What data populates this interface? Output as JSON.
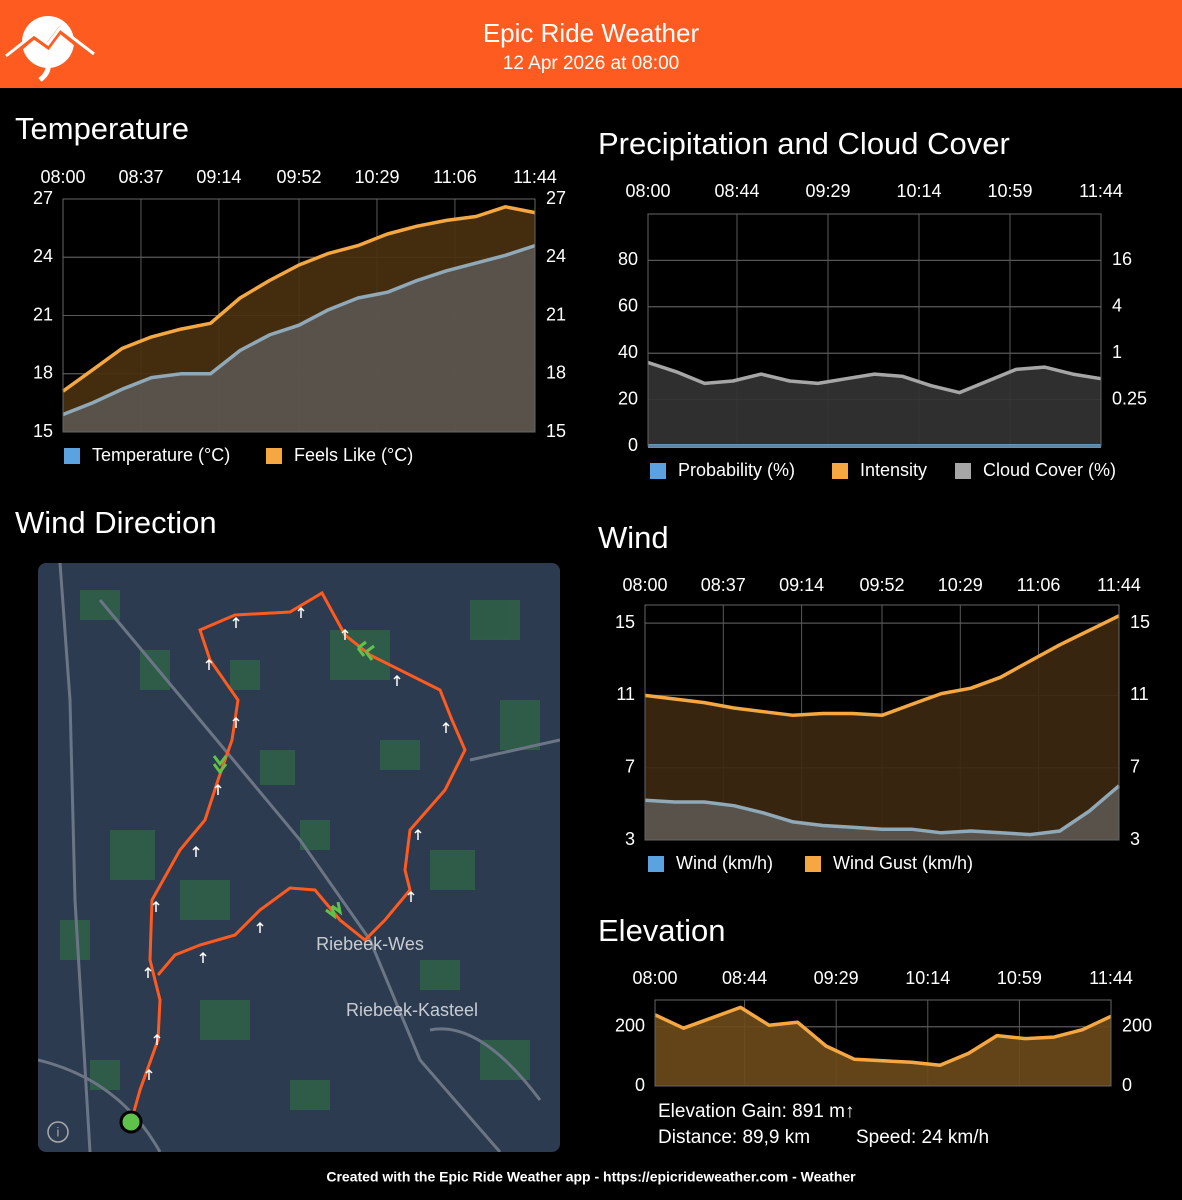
{
  "header": {
    "title": "Epic Ride Weather",
    "subtitle": "12 Apr 2026 at 08:00"
  },
  "map": {
    "title": "Wind Direction",
    "labels": [
      "Riebeek-Wes",
      "Riebeek-Kasteel"
    ]
  },
  "stats": {
    "gain": "Elevation Gain: 891 m↑",
    "distance": "Distance: 89,9 km",
    "speed": "Speed: 24 km/h"
  },
  "footer": "Created with the Epic Ride Weather app - https://epicrideweather.com - Weather",
  "chart_data": [
    {
      "type": "area",
      "title": "Temperature",
      "x": [
        "08:00",
        "08:14",
        "08:28",
        "08:42",
        "08:56",
        "09:10",
        "09:24",
        "09:38",
        "09:52",
        "10:06",
        "10:20",
        "10:34",
        "10:48",
        "11:02",
        "11:16",
        "11:30",
        "11:44"
      ],
      "xlim": [
        "08:00",
        "11:44"
      ],
      "xticks": [
        "08:00",
        "08:37",
        "09:14",
        "09:52",
        "10:29",
        "11:06",
        "11:44"
      ],
      "ylim": [
        15,
        27
      ],
      "yticks": [
        15,
        18,
        21,
        24,
        27
      ],
      "y2lim": [
        15,
        27
      ],
      "y2ticks": [
        15,
        18,
        21,
        24,
        27
      ],
      "grid": true,
      "legend": "bottom",
      "series": [
        {
          "name": "Temperature (°C)",
          "color": "#5ba3e0",
          "line_color": "#8fa9b8",
          "fill": "#5b5650",
          "values": [
            15.9,
            16.5,
            17.2,
            17.8,
            18.0,
            18.0,
            19.2,
            20.0,
            20.5,
            21.3,
            21.9,
            22.2,
            22.8,
            23.3,
            23.7,
            24.1,
            24.6
          ]
        },
        {
          "name": "Feels Like (°C)",
          "color": "#f5a742",
          "line_color": "#f5a742",
          "fill": "#4a300f",
          "values": [
            17.1,
            18.2,
            19.3,
            19.9,
            20.3,
            20.6,
            21.9,
            22.8,
            23.6,
            24.2,
            24.6,
            25.2,
            25.6,
            25.9,
            26.1,
            26.6,
            26.3
          ]
        }
      ]
    },
    {
      "type": "area",
      "title": "Precipitation and Cloud Cover",
      "x": [
        "08:00",
        "08:14",
        "08:28",
        "08:42",
        "08:56",
        "09:10",
        "09:24",
        "09:38",
        "09:52",
        "10:06",
        "10:20",
        "10:34",
        "10:48",
        "11:02",
        "11:16",
        "11:30",
        "11:44"
      ],
      "xlim": [
        "08:00",
        "11:44"
      ],
      "xticks": [
        "08:00",
        "08:44",
        "09:29",
        "10:14",
        "10:59",
        "11:44"
      ],
      "ylim": [
        0,
        100
      ],
      "yticks": [
        0,
        20,
        40,
        60,
        80
      ],
      "y2lim": [
        0.0625,
        64
      ],
      "y2ticks": [
        0.25,
        1,
        4,
        16
      ],
      "y2log": true,
      "grid": true,
      "legend": "bottom",
      "series": [
        {
          "name": "Probability (%)",
          "color": "#5ba3e0",
          "line_color": "#5ba3e0",
          "fill": "none",
          "values": [
            0,
            0,
            0,
            0,
            0,
            0,
            0,
            0,
            0,
            0,
            0,
            0,
            0,
            0,
            0,
            0,
            0
          ]
        },
        {
          "name": "Intensity",
          "color": "#f5a742",
          "line_color": "#f5a742",
          "fill": "none",
          "axis": "y2",
          "values": [
            0,
            0,
            0,
            0,
            0,
            0,
            0,
            0,
            0,
            0,
            0,
            0,
            0,
            0,
            0,
            0,
            0
          ]
        },
        {
          "name": "Cloud Cover (%)",
          "color": "#a6a6a6",
          "line_color": "#a6a6a6",
          "fill": "#333333",
          "values": [
            36,
            32,
            27,
            28,
            31,
            28,
            27,
            29,
            31,
            30,
            26,
            23,
            28,
            33,
            34,
            31,
            29
          ]
        }
      ]
    },
    {
      "type": "area",
      "title": "Wind",
      "x": [
        "08:00",
        "08:14",
        "08:28",
        "08:42",
        "08:56",
        "09:10",
        "09:24",
        "09:38",
        "09:52",
        "10:06",
        "10:20",
        "10:34",
        "10:48",
        "11:02",
        "11:16",
        "11:30",
        "11:44"
      ],
      "xlim": [
        "08:00",
        "11:44"
      ],
      "xticks": [
        "08:00",
        "08:37",
        "09:14",
        "09:52",
        "10:29",
        "11:06",
        "11:44"
      ],
      "ylim": [
        3,
        16
      ],
      "yticks": [
        3,
        7,
        11,
        15
      ],
      "y2lim": [
        3,
        16
      ],
      "y2ticks": [
        3,
        7,
        11,
        15
      ],
      "grid": true,
      "legend": "bottom",
      "series": [
        {
          "name": "Wind (km/h)",
          "color": "#5ba3e0",
          "line_color": "#8fa9b8",
          "fill": "#5b5650",
          "values": [
            5.2,
            5.1,
            5.1,
            4.9,
            4.5,
            4.0,
            3.8,
            3.7,
            3.6,
            3.6,
            3.4,
            3.5,
            3.4,
            3.3,
            3.5,
            4.6,
            6.0
          ]
        },
        {
          "name": "Wind Gust (km/h)",
          "color": "#f5a742",
          "line_color": "#f5a742",
          "fill": "#3d2810",
          "values": [
            11.0,
            10.8,
            10.6,
            10.3,
            10.1,
            9.9,
            10.0,
            10.0,
            9.9,
            10.5,
            11.1,
            11.4,
            12.0,
            12.9,
            13.8,
            14.6,
            15.4
          ]
        }
      ]
    },
    {
      "type": "area",
      "title": "Elevation",
      "x": [
        "08:00",
        "08:14",
        "08:28",
        "08:42",
        "08:56",
        "09:10",
        "09:24",
        "09:38",
        "09:52",
        "10:06",
        "10:20",
        "10:34",
        "10:48",
        "11:02",
        "11:16",
        "11:30",
        "11:44"
      ],
      "xlim": [
        "08:00",
        "11:44"
      ],
      "xticks": [
        "08:00",
        "08:44",
        "09:29",
        "10:14",
        "10:59",
        "11:44"
      ],
      "ylim": [
        0,
        290
      ],
      "yticks": [
        0,
        200
      ],
      "y2lim": [
        0,
        290
      ],
      "y2ticks": [
        0,
        200
      ],
      "grid": true,
      "color": "#f5a742",
      "fill": "#6b4a1a",
      "values": [
        240,
        195,
        230,
        265,
        205,
        215,
        135,
        90,
        85,
        80,
        70,
        110,
        170,
        160,
        165,
        190,
        235
      ]
    }
  ]
}
